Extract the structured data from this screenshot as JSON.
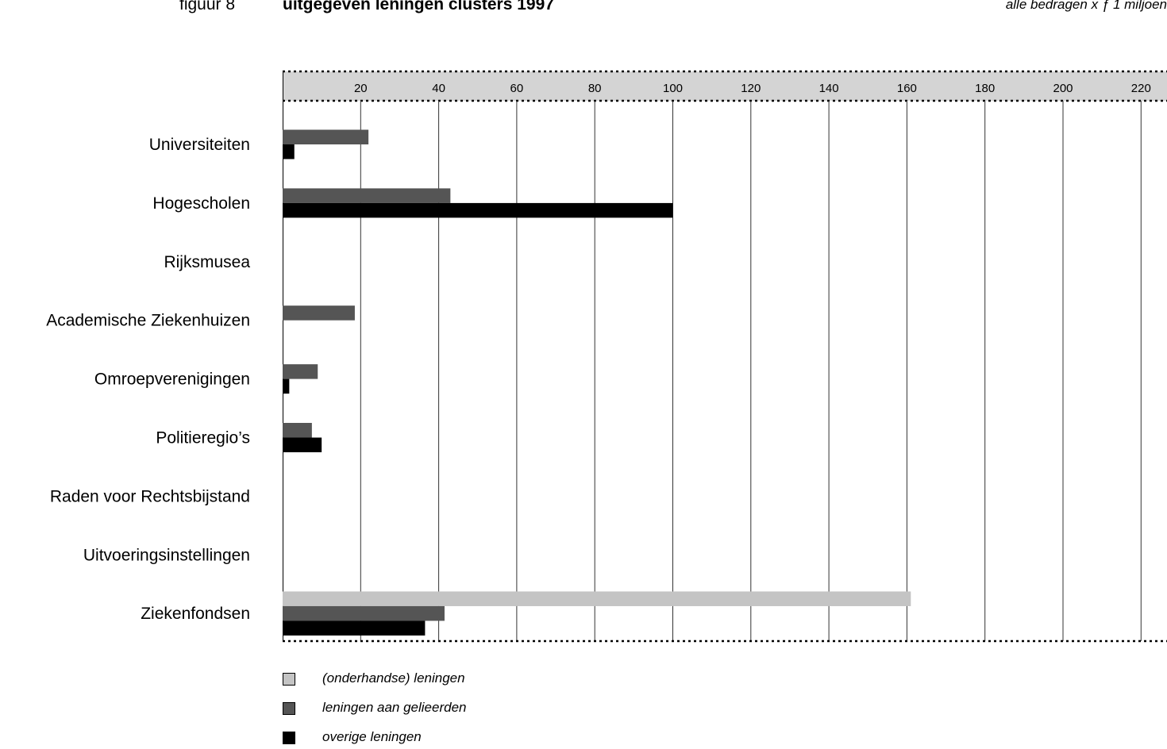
{
  "header": {
    "figure_label": "figuur 8",
    "title": "uitgegeven leningen clusters 1997",
    "unit_note": "alle bedragen x ƒ 1 miljoen"
  },
  "chart_data": {
    "type": "bar",
    "orientation": "horizontal",
    "title": "uitgegeven leningen clusters 1997",
    "xlim": [
      0,
      225
    ],
    "x_ticks": [
      20,
      40,
      60,
      80,
      100,
      120,
      140,
      160,
      180,
      200,
      220
    ],
    "grid": true,
    "legend_position": "bottom-left",
    "categories": [
      "Universiteiten",
      "Hogescholen",
      "Rijksmusea",
      "Academische Ziekenhuizen",
      "Omroepverenigingen",
      "Politieregio’s",
      "Raden voor Rechtsbijstand",
      "Uitvoeringsinstellingen",
      "Ziekenfondsen"
    ],
    "series": [
      {
        "name": "(onderhandse) leningen",
        "color": "#c4c4c4",
        "values": [
          0,
          0,
          0,
          0,
          0,
          0,
          0,
          0,
          161
        ]
      },
      {
        "name": "leningen aan gelieerden",
        "color": "#555555",
        "values": [
          22,
          43,
          0,
          18.5,
          9,
          7.5,
          0,
          0,
          41.5
        ]
      },
      {
        "name": "overige leningen",
        "color": "#000000",
        "values": [
          3,
          100,
          0,
          0,
          1.7,
          10,
          0,
          0,
          36.5
        ]
      }
    ]
  }
}
